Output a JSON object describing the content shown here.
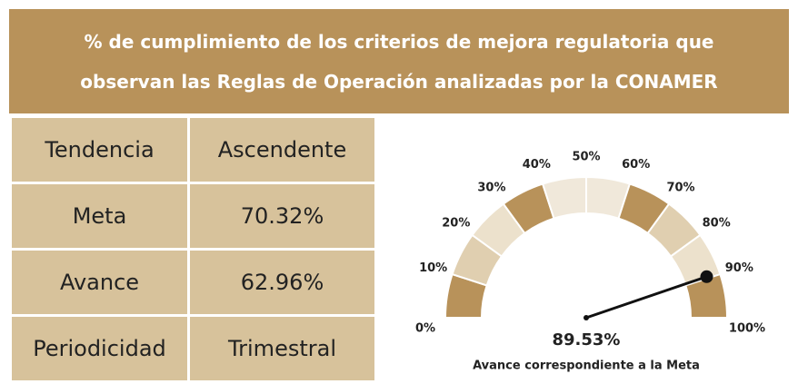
{
  "header": {
    "lines": [
      "% de cumplimiento de los criterios de mejora regulatoria que",
      "observan las Reglas de Operación analizadas por la CONAMER"
    ]
  },
  "table": {
    "rows": [
      [
        "Tendencia",
        "Ascendente"
      ],
      [
        "Meta",
        "70.32%"
      ],
      [
        "Avance",
        "62.96%"
      ],
      [
        "Periodicidad",
        "Trimestral"
      ]
    ]
  },
  "chart_data": {
    "type": "gauge",
    "value": 89.53,
    "value_labels": [
      "89.53%"
    ],
    "subtitle": "Avance correspondiente a la Meta",
    "xlim": [
      0,
      100
    ],
    "xticks": [
      {
        "value": 0,
        "label": "0%"
      },
      {
        "value": 10,
        "label": "10%"
      },
      {
        "value": 20,
        "label": "20%"
      },
      {
        "value": 30,
        "label": "30%"
      },
      {
        "value": 40,
        "label": "40%"
      },
      {
        "value": 50,
        "label": "50%"
      },
      {
        "value": 60,
        "label": "60%"
      },
      {
        "value": 70,
        "label": "70%"
      },
      {
        "value": 80,
        "label": "80%"
      },
      {
        "value": 90,
        "label": "90%"
      },
      {
        "value": 100,
        "label": "100%"
      }
    ],
    "band_colors": [
      "#b8925a",
      "#e0cfb0",
      "#ece1cc",
      "#b8925a",
      "#f0e8da",
      "#f0e8da",
      "#b8925a",
      "#e0cfb0",
      "#ece1cc",
      "#b8925a"
    ],
    "needle_color": "#111111"
  }
}
